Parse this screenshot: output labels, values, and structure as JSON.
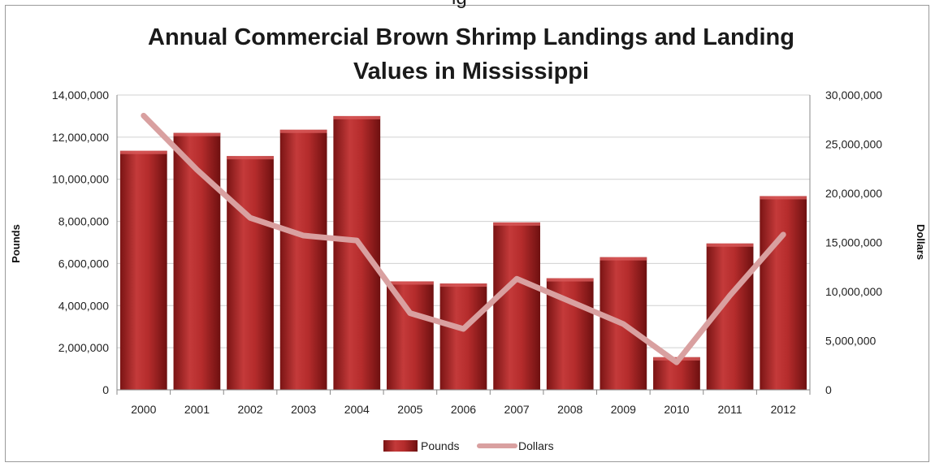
{
  "chart_data": {
    "type": "bar",
    "title_line1": "Annual Commercial Brown Shrimp Landings and Landing",
    "title_line2": "Values in Mississippi",
    "top_clipped_text": "ig",
    "categories": [
      "2000",
      "2001",
      "2002",
      "2003",
      "2004",
      "2005",
      "2006",
      "2007",
      "2008",
      "2009",
      "2010",
      "2011",
      "2012"
    ],
    "series": [
      {
        "name": "Pounds",
        "type": "bar",
        "axis": "left",
        "color": "#b02a2a",
        "values": [
          11350000,
          12200000,
          11100000,
          12350000,
          13000000,
          5150000,
          5050000,
          7950000,
          5300000,
          6300000,
          1550000,
          6950000,
          9200000
        ]
      },
      {
        "name": "Dollars",
        "type": "line",
        "axis": "right",
        "color": "#d9a0a0",
        "values": [
          27900000,
          22400000,
          17500000,
          15700000,
          15200000,
          7800000,
          6200000,
          11300000,
          9000000,
          6700000,
          2800000,
          9600000,
          15800000
        ]
      }
    ],
    "y_left": {
      "label": "Pounds",
      "lim": [
        0,
        14000000
      ],
      "ticks": [
        "0",
        "2,000,000",
        "4,000,000",
        "6,000,000",
        "8,000,000",
        "10,000,000",
        "12,000,000",
        "14,000,000"
      ]
    },
    "y_right": {
      "label": "Dollars",
      "lim": [
        0,
        30000000
      ],
      "ticks": [
        "0",
        "5,000,000",
        "10,000,000",
        "15,000,000",
        "20,000,000",
        "25,000,000",
        "30,000,000"
      ]
    },
    "grid": true,
    "legend_position": "bottom-center"
  }
}
